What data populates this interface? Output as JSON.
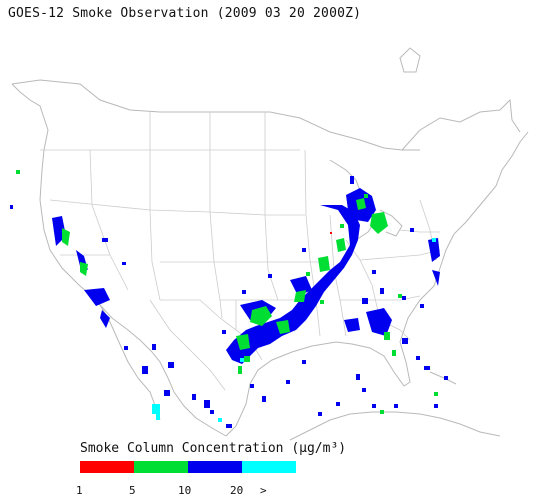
{
  "title": "GOES-12 Smoke Observation (2009 03 20  2000Z)",
  "legend": {
    "label": "Smoke Column Concentration (µg/m³)",
    "colors": [
      "#ff0000",
      "#00dd33",
      "#0000ee",
      "#00ffff"
    ],
    "ticks": [
      "1",
      "5",
      "10",
      "20",
      ">"
    ]
  },
  "map_style": {
    "land_fill": "#ffffff",
    "boundary_color": "#b9b9b9"
  }
}
